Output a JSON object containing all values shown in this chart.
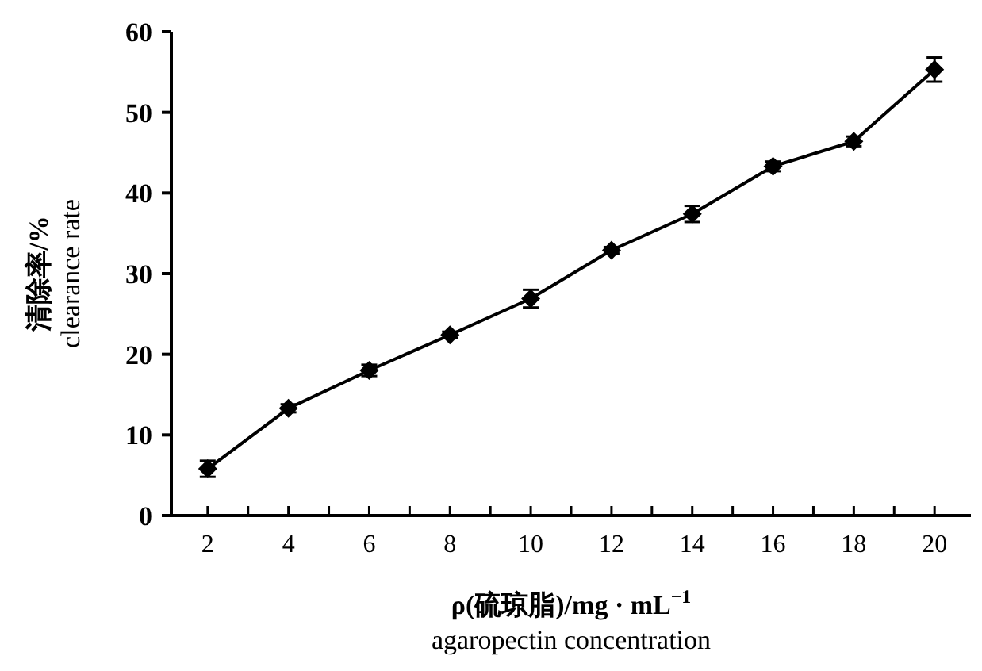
{
  "chart_data": {
    "type": "line",
    "xlabel": "ρ(硫琼脂)/mg · mL$^{−1}$\nagaropectin concentration",
    "ylabel": "清除率/%\nclearance rate",
    "categories": [
      "2",
      "4",
      "6",
      "8",
      "10",
      "12",
      "14",
      "16",
      "18",
      "20"
    ],
    "series": [
      {
        "color": "#000000",
        "values": [
          5.8,
          13.3,
          18.0,
          22.4,
          26.9,
          32.9,
          37.4,
          43.3,
          46.4,
          55.3
        ],
        "errors": [
          1.0,
          0.5,
          0.7,
          0.4,
          1.1,
          0.4,
          1.0,
          0.6,
          0.6,
          1.5
        ]
      }
    ],
    "ylim": [
      0,
      60
    ],
    "yticks": [
      0,
      10,
      20,
      30,
      40,
      50,
      60
    ],
    "marker": "diamond",
    "line_style": "solid",
    "grid": false
  }
}
